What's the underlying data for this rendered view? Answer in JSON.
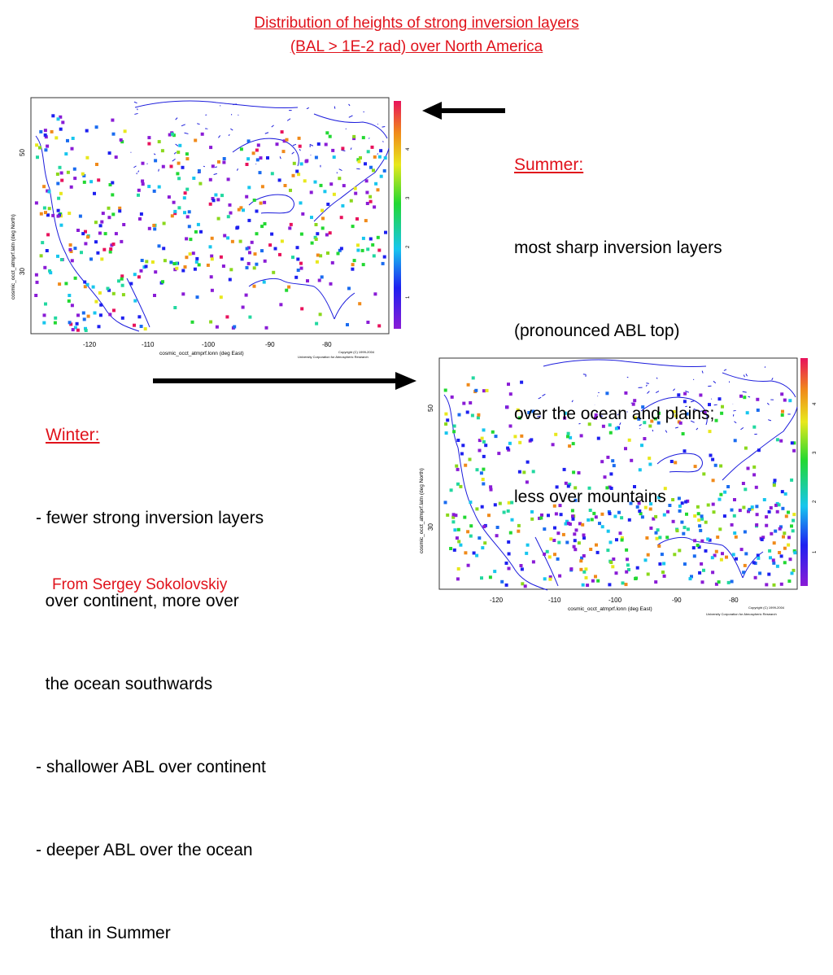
{
  "title": {
    "line1": "Distribution of heights of strong inversion layers",
    "line2": "(BAL > 1E-2 rad) over North America"
  },
  "summer": {
    "heading": "Summer:",
    "lines": [
      "most sharp inversion layers",
      "(pronounced ABL top)",
      "over the ocean and plains;",
      "less over mountains"
    ]
  },
  "winter": {
    "heading": "Winter:",
    "lines": [
      "- fewer strong inversion layers",
      "  over continent, more over",
      "  the ocean southwards",
      "- shallower ABL over continent",
      "- deeper ABL over the ocean",
      "   than in Summer"
    ]
  },
  "credit": "From Sergey Sokolovskiy",
  "map_labels": {
    "xlabel": "cosmic_occt_atmprf.lonn (deg East)",
    "ylabel": "cosmic_occt_atmprf.latn (deg North)",
    "x_ticks": [
      "-120",
      "-110",
      "-100",
      "-90",
      "-80"
    ],
    "y_ticks": [
      "50",
      "30"
    ],
    "colorbar_ticks": [
      "4",
      "3",
      "2",
      "1"
    ],
    "copyright1": "Copyright (C) 1999-2004",
    "copyright2": "University Corporation for Atmospheric Research"
  },
  "colors": {
    "title": "#e0121b",
    "coast": "#1c1cdc"
  }
}
